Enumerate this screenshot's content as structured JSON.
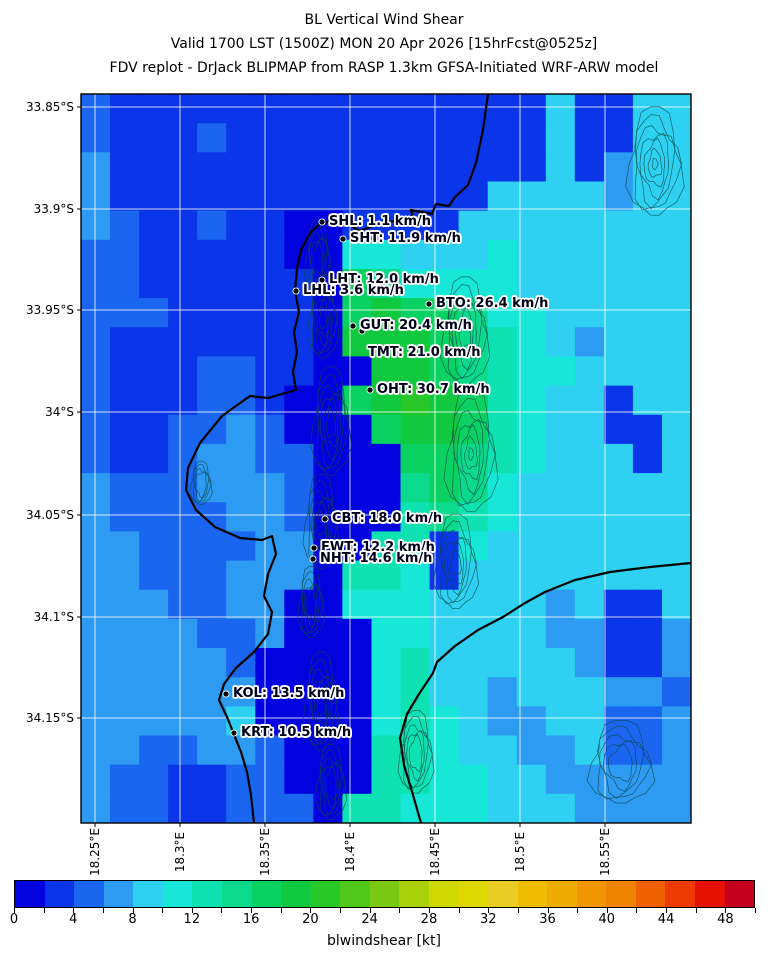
{
  "title": {
    "line1": "BL Vertical Wind Shear",
    "line2": "Valid 1700 LST (1500Z) MON 20 Apr 2026 [15hrFcst@0525z]",
    "line3": "FDV replot - DrJack BLIPMAP from RASP 1.3km GFSA-Initiated WRF-ARW model"
  },
  "chart_data": {
    "type": "heatmap",
    "title": "BL Vertical Wind Shear",
    "parameter": "blwindshear",
    "units": "kt",
    "x_ticks": [
      "18.25°E",
      "18.3°E",
      "18.35°E",
      "18.4°E",
      "18.45°E",
      "18.5°E",
      "18.55°E"
    ],
    "y_ticks": [
      "33.85°S",
      "33.9°S",
      "33.95°S",
      "34°S",
      "34.05°S",
      "34.1°S",
      "34.15°S"
    ],
    "x_range_deg_e": [
      18.24,
      18.6
    ],
    "y_range_deg_s": [
      33.84,
      34.2
    ],
    "grid_note": "cell_bins are colorbar bin indices; each bin spans 2 kt (bin i = 2i to 2i+2 kt); 21 cols west-to-east, 25 rows north-to-south",
    "cell_bins": [
      [
        2,
        1,
        1,
        1,
        1,
        1,
        1,
        1,
        1,
        1,
        1,
        1,
        1,
        1,
        1,
        1,
        4,
        1,
        1,
        4,
        4
      ],
      [
        2,
        1,
        1,
        1,
        2,
        1,
        1,
        1,
        1,
        1,
        1,
        1,
        1,
        1,
        1,
        1,
        4,
        1,
        1,
        4,
        4
      ],
      [
        3,
        1,
        1,
        1,
        1,
        1,
        1,
        1,
        1,
        1,
        1,
        1,
        1,
        1,
        1,
        1,
        4,
        1,
        3,
        4,
        4
      ],
      [
        3,
        1,
        1,
        1,
        1,
        1,
        1,
        1,
        1,
        1,
        1,
        1,
        1,
        1,
        4,
        4,
        4,
        4,
        3,
        4,
        4
      ],
      [
        3,
        2,
        1,
        1,
        2,
        1,
        1,
        0,
        0,
        1,
        1,
        1,
        1,
        4,
        4,
        4,
        4,
        4,
        4,
        4,
        4
      ],
      [
        2,
        2,
        1,
        1,
        1,
        1,
        1,
        0,
        0,
        5,
        5,
        4,
        4,
        4,
        5,
        4,
        4,
        4,
        4,
        4,
        4
      ],
      [
        2,
        2,
        1,
        1,
        1,
        1,
        1,
        1,
        0,
        8,
        7,
        5,
        5,
        5,
        5,
        4,
        4,
        4,
        4,
        4,
        4
      ],
      [
        2,
        2,
        2,
        1,
        1,
        1,
        1,
        1,
        0,
        8,
        9,
        8,
        8,
        7,
        5,
        5,
        4,
        4,
        4,
        4,
        4
      ],
      [
        2,
        1,
        1,
        1,
        1,
        1,
        1,
        1,
        0,
        9,
        9,
        9,
        8,
        7,
        6,
        5,
        4,
        3,
        4,
        4,
        4
      ],
      [
        2,
        1,
        1,
        1,
        2,
        2,
        1,
        1,
        0,
        0,
        9,
        9,
        8,
        7,
        6,
        5,
        5,
        4,
        4,
        4,
        4
      ],
      [
        2,
        1,
        1,
        1,
        2,
        2,
        1,
        0,
        0,
        8,
        9,
        10,
        9,
        8,
        6,
        5,
        4,
        4,
        1,
        4,
        4
      ],
      [
        2,
        1,
        1,
        2,
        2,
        3,
        2,
        0,
        0,
        0,
        8,
        9,
        9,
        8,
        6,
        5,
        4,
        4,
        1,
        1,
        4
      ],
      [
        2,
        1,
        1,
        2,
        3,
        3,
        2,
        2,
        0,
        0,
        0,
        8,
        8,
        7,
        6,
        5,
        4,
        4,
        4,
        1,
        4
      ],
      [
        3,
        2,
        2,
        2,
        3,
        3,
        3,
        2,
        0,
        0,
        0,
        7,
        8,
        7,
        5,
        4,
        4,
        4,
        4,
        4,
        4
      ],
      [
        3,
        2,
        2,
        2,
        2,
        3,
        3,
        2,
        0,
        0,
        0,
        6,
        7,
        6,
        5,
        4,
        4,
        4,
        4,
        4,
        4
      ],
      [
        3,
        3,
        2,
        2,
        2,
        2,
        3,
        3,
        0,
        0,
        6,
        6,
        1,
        5,
        4,
        4,
        4,
        4,
        4,
        4,
        4
      ],
      [
        3,
        3,
        2,
        2,
        2,
        3,
        3,
        3,
        0,
        6,
        6,
        5,
        1,
        4,
        4,
        4,
        4,
        4,
        4,
        4,
        4
      ],
      [
        3,
        3,
        3,
        2,
        2,
        3,
        3,
        0,
        0,
        5,
        5,
        5,
        4,
        4,
        4,
        4,
        3,
        4,
        1,
        1,
        4
      ],
      [
        3,
        3,
        3,
        3,
        2,
        2,
        3,
        0,
        0,
        0,
        5,
        5,
        4,
        4,
        4,
        4,
        3,
        3,
        1,
        1,
        3
      ],
      [
        3,
        3,
        3,
        3,
        3,
        2,
        0,
        0,
        0,
        0,
        5,
        6,
        4,
        4,
        4,
        4,
        4,
        3,
        1,
        1,
        3
      ],
      [
        3,
        3,
        3,
        3,
        3,
        3,
        0,
        0,
        0,
        0,
        5,
        6,
        4,
        4,
        3,
        4,
        4,
        4,
        3,
        3,
        2
      ],
      [
        3,
        3,
        3,
        3,
        3,
        4,
        0,
        0,
        0,
        0,
        5,
        6,
        5,
        4,
        3,
        3,
        4,
        4,
        2,
        2,
        3
      ],
      [
        3,
        3,
        2,
        2,
        3,
        3,
        2,
        0,
        0,
        0,
        6,
        6,
        5,
        4,
        4,
        3,
        3,
        4,
        2,
        2,
        3
      ],
      [
        3,
        2,
        2,
        1,
        1,
        2,
        2,
        0,
        0,
        0,
        6,
        6,
        5,
        5,
        4,
        4,
        3,
        3,
        3,
        3,
        3
      ],
      [
        3,
        2,
        2,
        1,
        1,
        2,
        2,
        2,
        0,
        6,
        6,
        5,
        5,
        5,
        4,
        4,
        4,
        3,
        3,
        3,
        3
      ]
    ],
    "stations": [
      {
        "id": "SHL",
        "label": "SHL: 1.1 km/h",
        "value_kmh": 1.1,
        "x": 322,
        "y": 222
      },
      {
        "id": "SHT",
        "label": "SHT: 11.9 km/h",
        "value_kmh": 11.9,
        "x": 343,
        "y": 239
      },
      {
        "id": "LHT",
        "label": "LHT: 12.0 km/h",
        "value_kmh": 12.0,
        "x": 322,
        "y": 280
      },
      {
        "id": "LHL",
        "label": "LHL: 3.6 km/h",
        "value_kmh": 3.6,
        "x": 296,
        "y": 291
      },
      {
        "id": "BTO",
        "label": "BTO: 26.4 km/h",
        "value_kmh": 26.4,
        "x": 429,
        "y": 304
      },
      {
        "id": "GUT",
        "label": "GUT: 20.4 km/h",
        "value_kmh": 20.4,
        "x": 353,
        "y": 326
      },
      {
        "id": "TMT",
        "label": "TMT: 21.0 km/h",
        "value_kmh": 21.0,
        "x": 362,
        "y": 331,
        "label_dx": 6,
        "label_dy": 13
      },
      {
        "id": "OHT",
        "label": "OHT: 30.7 km/h",
        "value_kmh": 30.7,
        "x": 370,
        "y": 390
      },
      {
        "id": "CBT",
        "label": "CBT: 18.0 km/h",
        "value_kmh": 18.0,
        "x": 325,
        "y": 519
      },
      {
        "id": "FWT",
        "label": "FWT: 12.2 km/h",
        "value_kmh": 12.2,
        "x": 314,
        "y": 548
      },
      {
        "id": "NHT",
        "label": "NHT: 14.6 km/h",
        "value_kmh": 14.6,
        "x": 313,
        "y": 559
      },
      {
        "id": "KOL",
        "label": "KOL: 13.5 km/h",
        "value_kmh": 13.5,
        "x": 226,
        "y": 694
      },
      {
        "id": "KRT",
        "label": "KRT: 10.5 km/h",
        "value_kmh": 10.5,
        "x": 234,
        "y": 733
      }
    ],
    "colorbar": {
      "label": "blwindshear [kt]",
      "range": [
        0,
        50
      ],
      "tick_labels": [
        "0",
        "4",
        "8",
        "12",
        "16",
        "20",
        "24",
        "28",
        "32",
        "36",
        "40",
        "44",
        "48"
      ],
      "tick_values": [
        0,
        4,
        8,
        12,
        16,
        20,
        24,
        28,
        32,
        36,
        40,
        44,
        48
      ],
      "colors": [
        "#0202e0",
        "#0a35e8",
        "#1b66f0",
        "#2d9bf2",
        "#2ed1f2",
        "#17e7d6",
        "#0ee2b2",
        "#0bda8c",
        "#09d162",
        "#10c93e",
        "#27c827",
        "#4fc81c",
        "#7bc813",
        "#a9d008",
        "#cfd800",
        "#ddd700",
        "#e8ce22",
        "#eebc00",
        "#eeab00",
        "#f09600",
        "#ee8300",
        "#ee6000",
        "#ee3a00",
        "#e61000",
        "#c4001e"
      ]
    },
    "legend_position": "bottom",
    "grid_lines": "white graticule at each labeled tick"
  }
}
